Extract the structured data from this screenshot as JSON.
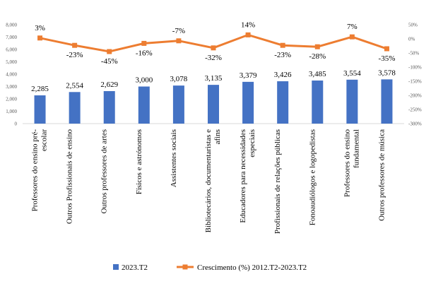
{
  "chart_data": {
    "type": "bar",
    "categories": [
      [
        "Professores do ensino pré-",
        "escolar"
      ],
      [
        "Outros Profissionais de ensino"
      ],
      [
        "Outros professores de artes"
      ],
      [
        "Físicos e astrónomos"
      ],
      [
        "Assistentes sociais"
      ],
      [
        "Bibliotecários, documentaristas e",
        "afins"
      ],
      [
        "Educadores para necessidades",
        "especiais"
      ],
      [
        "Profissionais de relações públicas"
      ],
      [
        "Fonoaudiólogos e logopedistas"
      ],
      [
        "Professores do ensino",
        "fundamental"
      ],
      [
        "Outros professores de música"
      ]
    ],
    "series": [
      {
        "name": "2023.T2",
        "type": "bar",
        "axis": "left",
        "color": "#4472C4",
        "values": [
          2285,
          2554,
          2629,
          3000,
          3078,
          3135,
          3379,
          3426,
          3485,
          3554,
          3578
        ],
        "labels": [
          "2,285",
          "2,554",
          "2,629",
          "3,000",
          "3,078",
          "3,135",
          "3,379",
          "3,426",
          "3,485",
          "3,554",
          "3,578"
        ]
      },
      {
        "name": "Crescimento (%) 2012.T2-2023.T2",
        "type": "line",
        "axis": "right",
        "color": "#ED7D31",
        "values": [
          3,
          -23,
          -45,
          -16,
          -7,
          -32,
          14,
          -23,
          -28,
          7,
          -35
        ],
        "labels": [
          "3%",
          "-23%",
          "-45%",
          "-16%",
          "-7%",
          "-32%",
          "14%",
          "-23%",
          "-28%",
          "7%",
          "-35%"
        ]
      }
    ],
    "y_left": {
      "ylim": [
        0,
        8000
      ],
      "ticks": [
        0,
        1000,
        2000,
        3000,
        4000,
        5000,
        6000,
        7000,
        8000
      ],
      "tick_labels": [
        "0",
        "1,000",
        "2,000",
        "3,000",
        "4,000",
        "5,000",
        "6,000",
        "7,000",
        "8,000"
      ]
    },
    "y_right": {
      "ylim": [
        -300,
        50
      ],
      "ticks": [
        -300,
        -250,
        -200,
        -150,
        -100,
        -50,
        0,
        50
      ],
      "tick_labels": [
        "-300%",
        "-250%",
        "-200%",
        "-150%",
        "-100%",
        "-50%",
        "0%",
        "50%"
      ]
    },
    "legend_position": "bottom",
    "grid": false
  }
}
